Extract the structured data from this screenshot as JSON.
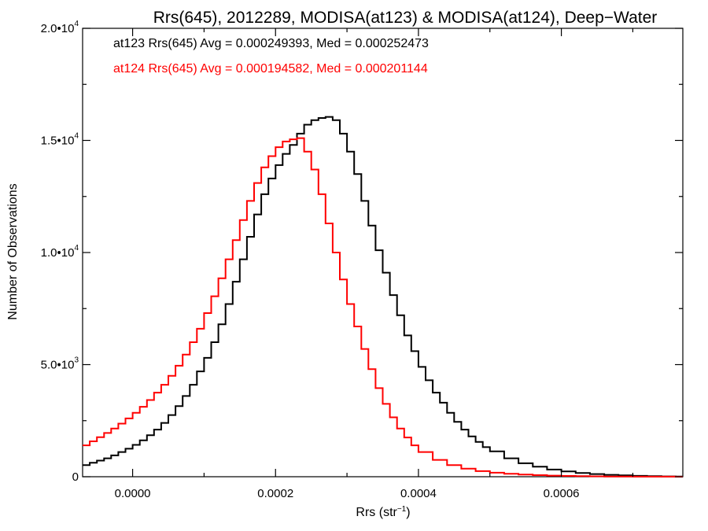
{
  "chart_data": {
    "type": "line",
    "title": "Rrs(645), 2012289, MODISA(at123) & MODISA(at124), Deep−Water",
    "xlabel_base": "Rrs (str",
    "xlabel_sup": "−1",
    "xlabel_tail": ")",
    "ylabel": "Number of Observations",
    "xlim": [
      -7e-05,
      0.00077
    ],
    "ylim": [
      0,
      20000
    ],
    "x_ticks": [
      {
        "value": 0.0,
        "label": "0.0000"
      },
      {
        "value": 0.0002,
        "label": "0.0002"
      },
      {
        "value": 0.0004,
        "label": "0.0004"
      },
      {
        "value": 0.0006,
        "label": "0.0006"
      }
    ],
    "y_ticks": [
      {
        "value": 0,
        "base": "0",
        "sup": ""
      },
      {
        "value": 5000,
        "base": "5.0•10",
        "sup": "3"
      },
      {
        "value": 10000,
        "base": "1.0•10",
        "sup": "4"
      },
      {
        "value": 15000,
        "base": "1.5•10",
        "sup": "4"
      },
      {
        "value": 20000,
        "base": "2.0•10",
        "sup": "4"
      }
    ],
    "series": [
      {
        "name": "at123",
        "legend": "at123 Rrs(645) Avg = 0.000249393, Med = 0.000252473",
        "color": "#000000",
        "x": [
          -7e-05,
          -6e-05,
          -5e-05,
          -4e-05,
          -3e-05,
          -2e-05,
          -1e-05,
          0.0,
          1e-05,
          2e-05,
          3e-05,
          4e-05,
          5e-05,
          6e-05,
          7e-05,
          8e-05,
          9e-05,
          0.0001,
          0.00011,
          0.00012,
          0.00013,
          0.00014,
          0.00015,
          0.00016,
          0.00017,
          0.00018,
          0.00019,
          0.0002,
          0.00021,
          0.00022,
          0.00023,
          0.00024,
          0.00025,
          0.00026,
          0.00027,
          0.00028,
          0.00029,
          0.0003,
          0.00031,
          0.00032,
          0.00033,
          0.00034,
          0.00035,
          0.00036,
          0.00037,
          0.00038,
          0.00039,
          0.0004,
          0.00041,
          0.00042,
          0.00043,
          0.00044,
          0.00045,
          0.00046,
          0.00047,
          0.00048,
          0.00049,
          0.0005,
          0.00052,
          0.00054,
          0.00056,
          0.00058,
          0.0006,
          0.00062,
          0.00064,
          0.00066,
          0.00068,
          0.0007,
          0.00072,
          0.00074,
          0.00076
        ],
        "values": [
          520,
          620,
          720,
          820,
          950,
          1100,
          1250,
          1420,
          1620,
          1850,
          2100,
          2400,
          2750,
          3150,
          3600,
          4100,
          4700,
          5300,
          6000,
          6800,
          7700,
          8700,
          9700,
          10700,
          11700,
          12600,
          13300,
          13900,
          14400,
          14800,
          15300,
          15700,
          15900,
          16000,
          16050,
          15900,
          15300,
          14500,
          13500,
          12300,
          11200,
          10100,
          9100,
          8100,
          7200,
          6300,
          5600,
          4900,
          4300,
          3750,
          3300,
          2850,
          2450,
          2100,
          1800,
          1550,
          1320,
          1130,
          820,
          600,
          450,
          320,
          240,
          170,
          120,
          85,
          60,
          40,
          25,
          15,
          8
        ]
      },
      {
        "name": "at124",
        "legend": "at124 Rrs(645) Avg = 0.000194582, Med = 0.000201144",
        "color": "#ff0000",
        "x": [
          -7e-05,
          -6e-05,
          -5e-05,
          -4e-05,
          -3e-05,
          -2e-05,
          -1e-05,
          0.0,
          1e-05,
          2e-05,
          3e-05,
          4e-05,
          5e-05,
          6e-05,
          7e-05,
          8e-05,
          9e-05,
          0.0001,
          0.00011,
          0.00012,
          0.00013,
          0.00014,
          0.00015,
          0.00016,
          0.00017,
          0.00018,
          0.00019,
          0.0002,
          0.00021,
          0.00022,
          0.00023,
          0.00024,
          0.00025,
          0.00026,
          0.00027,
          0.00028,
          0.00029,
          0.0003,
          0.00031,
          0.00032,
          0.00033,
          0.00034,
          0.00035,
          0.00036,
          0.00037,
          0.00038,
          0.00039,
          0.0004,
          0.00042,
          0.00044,
          0.00046,
          0.00048,
          0.0005,
          0.00052,
          0.00054,
          0.00056,
          0.00058,
          0.0006,
          0.00062,
          0.00064,
          0.00066,
          0.00068,
          0.0007,
          0.00072,
          0.00074,
          0.00076
        ],
        "values": [
          1400,
          1580,
          1760,
          1950,
          2150,
          2370,
          2600,
          2850,
          3120,
          3420,
          3750,
          4100,
          4500,
          4950,
          5450,
          6000,
          6600,
          7300,
          8050,
          8850,
          9700,
          10550,
          11450,
          12300,
          13100,
          13800,
          14300,
          14700,
          14950,
          15050,
          15100,
          14500,
          13700,
          12600,
          11300,
          10000,
          8800,
          7700,
          6700,
          5700,
          4800,
          3950,
          3250,
          2650,
          2150,
          1750,
          1400,
          1100,
          750,
          520,
          360,
          250,
          180,
          130,
          95,
          70,
          50,
          35,
          25,
          18,
          12,
          8,
          5,
          3,
          2,
          1
        ]
      }
    ],
    "grid": false
  }
}
